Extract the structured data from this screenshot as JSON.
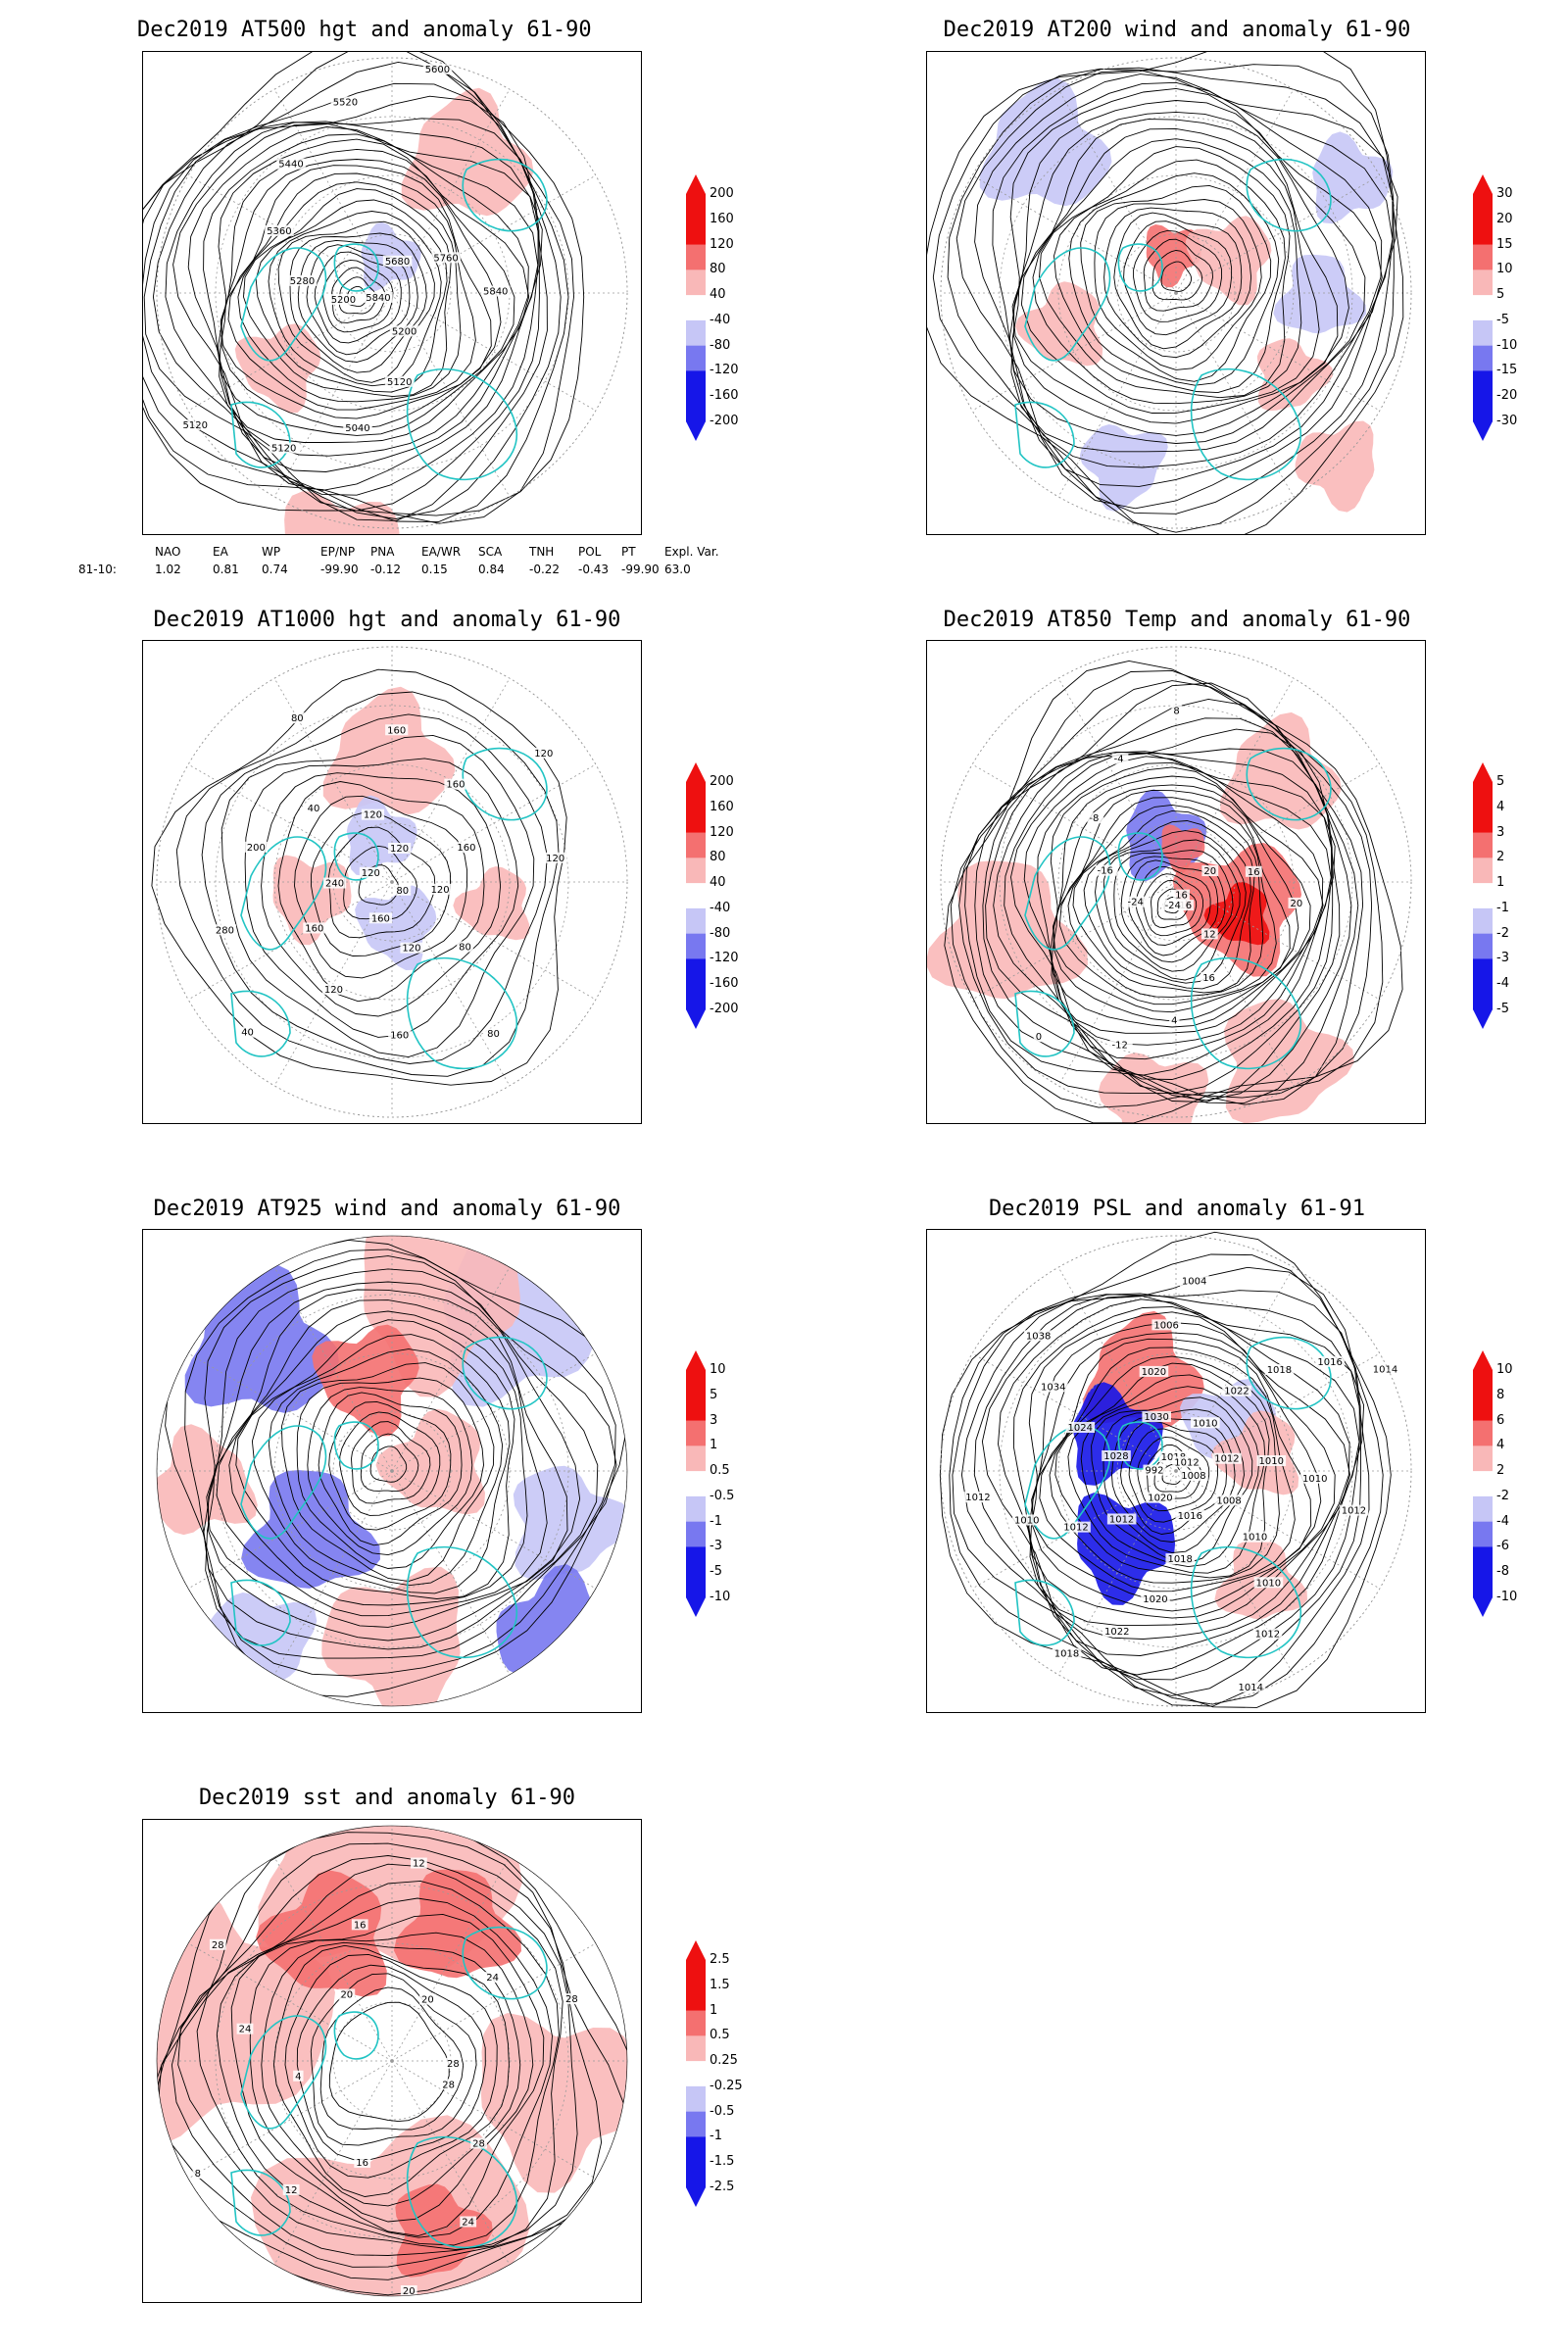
{
  "colors": {
    "coast": "#22c4c4",
    "contour": "#000000",
    "pos_strong": "#ee1010",
    "pos_mid": "#f47070",
    "pos_light": "#f9b8b8",
    "neg_light": "#c6c6f6",
    "neg_mid": "#7878f0",
    "neg_strong": "#1616e8",
    "grid": "#9a9a9a"
  },
  "panels": [
    {
      "id": "z500",
      "title": "Dec2019 AT500 hgt and anomaly 61-90",
      "colorbar": [
        "200",
        "160",
        "120",
        "80",
        "40",
        "-40",
        "-80",
        "-120",
        "-160",
        "-200"
      ],
      "contour_labels": [
        "5840",
        "5200",
        "5120",
        "5040",
        "5120",
        "5120",
        "5200",
        "5280",
        "5360",
        "5440",
        "5520",
        "5600",
        "5680",
        "5760",
        "5840"
      ]
    },
    {
      "id": "w200",
      "title": "Dec2019 AT200 wind and anomaly 61-90",
      "colorbar": [
        "30",
        "20",
        "15",
        "10",
        "5",
        "-5",
        "-10",
        "-15",
        "-20",
        "-30"
      ],
      "contour_labels": []
    },
    {
      "id": "z1000",
      "title": "Dec2019 AT1000 hgt and anomaly 61-90",
      "colorbar": [
        "200",
        "160",
        "120",
        "80",
        "40",
        "-40",
        "-80",
        "-120",
        "-160",
        "-200"
      ],
      "contour_labels": [
        "80",
        "80",
        "80",
        "120",
        "160",
        "160",
        "120",
        "40",
        "160",
        "280",
        "240",
        "200",
        "120",
        "40",
        "80",
        "120",
        "160",
        "120",
        "160",
        "120",
        "160",
        "120",
        "120"
      ]
    },
    {
      "id": "t850",
      "title": "Dec2019 AT850 Temp and anomaly 61-90",
      "colorbar": [
        "5",
        "4",
        "3",
        "2",
        "1",
        "-1",
        "-2",
        "-3",
        "-4",
        "-5"
      ],
      "contour_labels": [
        "16",
        "12",
        "16",
        "4",
        "-12",
        "0",
        "-24",
        "-24",
        "-16",
        "-8",
        "-4",
        "8",
        "16",
        "20",
        "16",
        "20"
      ]
    },
    {
      "id": "w925",
      "title": "Dec2019 AT925 wind and anomaly 61-90",
      "colorbar": [
        "10",
        "5",
        "3",
        "1",
        "0.5",
        "-0.5",
        "-1",
        "-3",
        "-5",
        "-10"
      ],
      "contour_labels": []
    },
    {
      "id": "psl",
      "title": "Dec2019 PSL and anomaly 61-91",
      "colorbar": [
        "10",
        "8",
        "6",
        "4",
        "2",
        "-2",
        "-4",
        "-6",
        "-8",
        "-10"
      ],
      "contour_labels": [
        "1008",
        "1008",
        "1010",
        "1010",
        "1012",
        "1014",
        "1016",
        "1018",
        "1020",
        "1022",
        "1018",
        "1020",
        "1012",
        "1012",
        "1010",
        "1012",
        "992",
        "1028",
        "1024",
        "1034",
        "1038",
        "1018",
        "1030",
        "1020",
        "1006",
        "1004",
        "1012",
        "1010",
        "1022",
        "1018",
        "1016",
        "1014",
        "1012",
        "1010",
        "1010",
        "1012"
      ]
    },
    {
      "id": "sst",
      "title": "Dec2019 sst and anomaly 61-90",
      "colorbar": [
        "2.5",
        "1.5",
        "1",
        "0.5",
        "0.25",
        "-0.25",
        "-0.5",
        "-1",
        "-1.5",
        "-2.5"
      ],
      "contour_labels": [
        "28",
        "28",
        "24",
        "20",
        "16",
        "12",
        "8",
        "4",
        "24",
        "28",
        "20",
        "16",
        "12",
        "20",
        "24",
        "28",
        "28"
      ]
    }
  ],
  "teleconnection": {
    "headers": [
      "NAO",
      "EA",
      "WP",
      "EP/NP",
      "PNA",
      "EA/WR",
      "SCA",
      "TNH",
      "POL",
      "PT",
      "Expl. Var."
    ],
    "row_label": "81-10:",
    "values": [
      "1.02",
      "0.81",
      "0.74",
      "-99.90",
      "-0.12",
      "0.15",
      "0.84",
      "-0.22",
      "-0.43",
      "-99.90",
      "63.0"
    ]
  }
}
